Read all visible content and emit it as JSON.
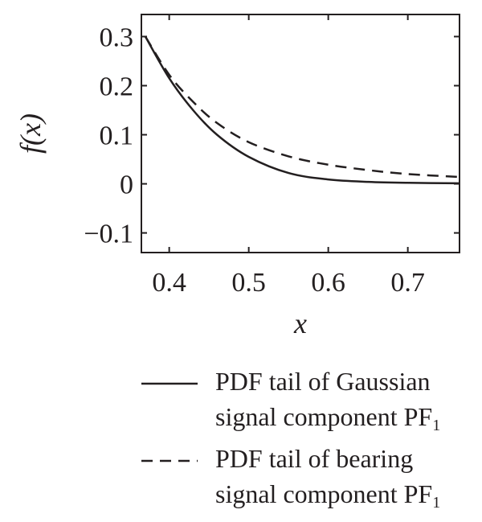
{
  "chart_data": {
    "type": "line",
    "xlabel": "x",
    "ylabel": "f(x)",
    "xlim": [
      0.365,
      0.765
    ],
    "ylim": [
      -0.14,
      0.345
    ],
    "x_ticks": [
      "0.4",
      "0.5",
      "0.6",
      "0.7"
    ],
    "x_tick_values": [
      0.4,
      0.5,
      0.6,
      0.7
    ],
    "y_ticks": [
      "0.3",
      "0.2",
      "0.1",
      "0",
      "−0.1"
    ],
    "y_tick_values": [
      0.3,
      0.2,
      0.1,
      0,
      -0.1
    ],
    "grid": false,
    "legend_position": "below",
    "series": [
      {
        "name": "PDF tail of Gaussian signal component PF",
        "name_subscript": "1",
        "style": "solid",
        "color": "#231f20",
        "x": [
          0.37,
          0.4,
          0.43,
          0.46,
          0.5,
          0.55,
          0.6,
          0.65,
          0.7,
          0.765
        ],
        "y": [
          0.3,
          0.215,
          0.15,
          0.1,
          0.055,
          0.022,
          0.009,
          0.004,
          0.002,
          0.001
        ]
      },
      {
        "name": "PDF tail of bearing signal component PF",
        "name_subscript": "1",
        "style": "dashed",
        "color": "#231f20",
        "x": [
          0.37,
          0.4,
          0.43,
          0.46,
          0.5,
          0.55,
          0.6,
          0.65,
          0.7,
          0.765
        ],
        "y": [
          0.3,
          0.222,
          0.167,
          0.124,
          0.085,
          0.056,
          0.039,
          0.028,
          0.02,
          0.014
        ]
      }
    ]
  }
}
